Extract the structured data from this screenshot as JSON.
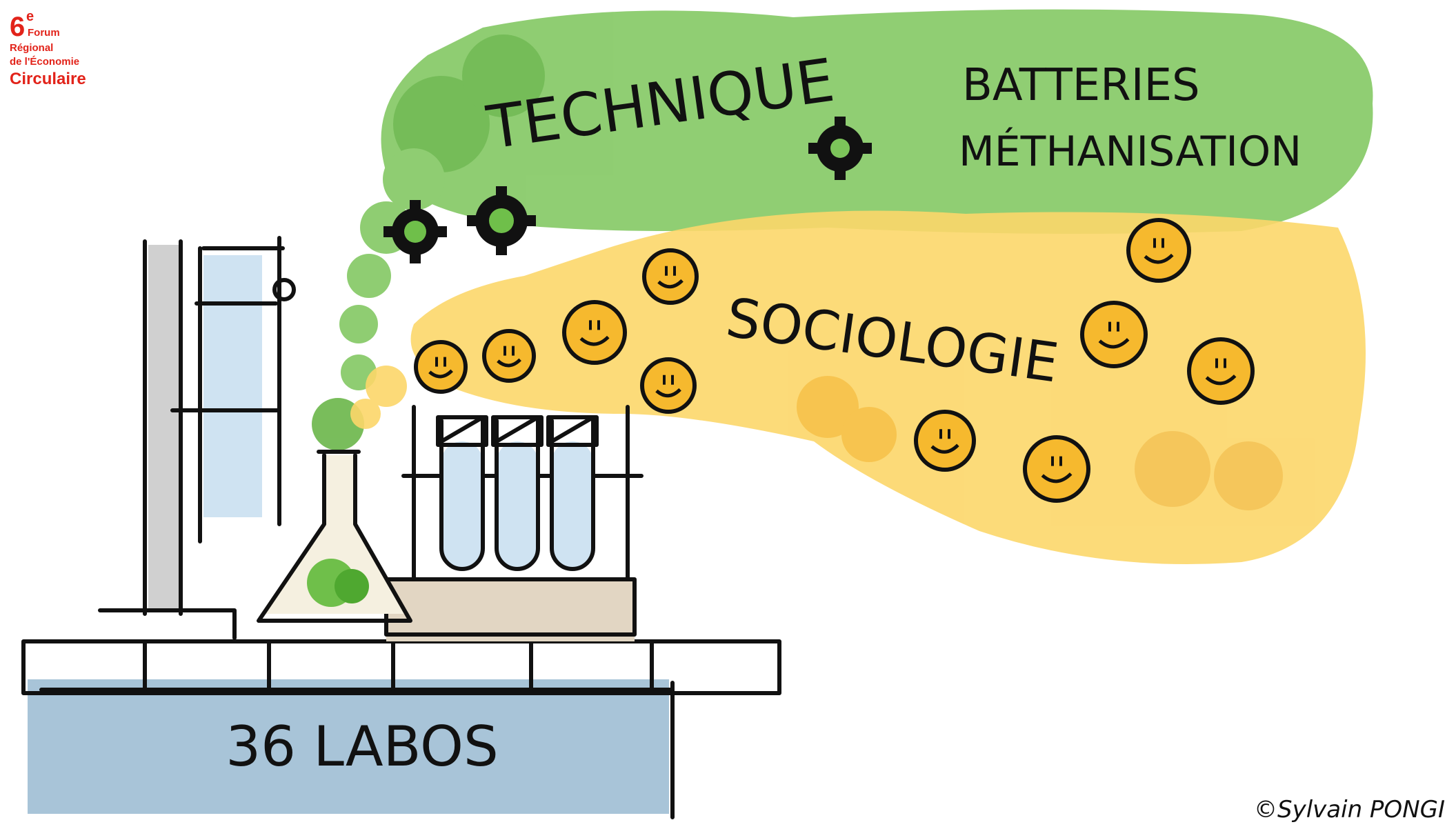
{
  "logo": {
    "number": "6",
    "superscript": "e",
    "lines": [
      "Forum",
      "Régional",
      "de l'Économie",
      "Circulaire"
    ]
  },
  "labels": {
    "technique": "TECHNIQUE",
    "technique_items": [
      "BATTERIES",
      "MÉTHANISATION"
    ],
    "sociologie": "SOCIOLOGIE",
    "labs": "36 LABOS"
  },
  "credit": "©Sylvain PONGI"
}
